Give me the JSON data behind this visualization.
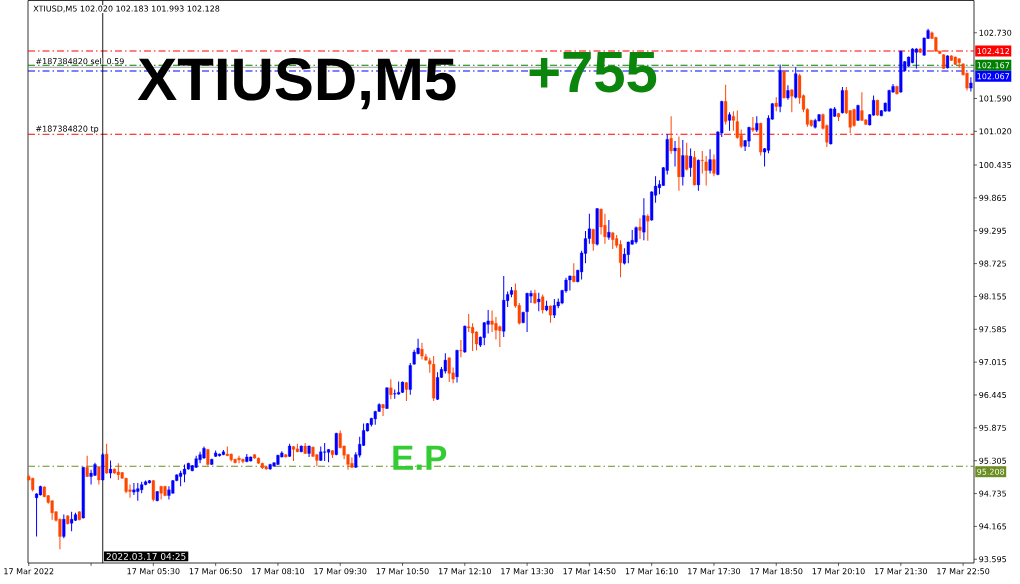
{
  "chart_data": {
    "type": "candlestick",
    "title": "XTIUSD,M5 102.020 102.183 101.993 102.128",
    "x": [
      "2022-03-17T02:50",
      "2022-03-17T02:55",
      "2022-03-17T03:00",
      "2022-03-17T03:05",
      "2022-03-17T03:10",
      "2022-03-17T03:15",
      "2022-03-17T03:20",
      "2022-03-17T03:25",
      "2022-03-17T03:30",
      "2022-03-17T03:35",
      "2022-03-17T03:40",
      "2022-03-17T03:45",
      "2022-03-17T03:50",
      "2022-03-17T03:55",
      "2022-03-17T04:00",
      "2022-03-17T04:05",
      "2022-03-17T04:10",
      "2022-03-17T04:15",
      "2022-03-17T04:20",
      "2022-03-17T04:25",
      "2022-03-17T04:30",
      "2022-03-17T04:35",
      "2022-03-17T04:40",
      "2022-03-17T04:45",
      "2022-03-17T04:50",
      "2022-03-17T04:55",
      "2022-03-17T05:00",
      "2022-03-17T05:05",
      "2022-03-17T05:10",
      "2022-03-17T05:15",
      "2022-03-17T05:20",
      "2022-03-17T05:25",
      "2022-03-17T05:30",
      "2022-03-17T05:35",
      "2022-03-17T05:40",
      "2022-03-17T05:45",
      "2022-03-17T05:50",
      "2022-03-17T05:55",
      "2022-03-17T06:00",
      "2022-03-17T06:05",
      "2022-03-17T06:10",
      "2022-03-17T06:15",
      "2022-03-17T06:20",
      "2022-03-17T06:25",
      "2022-03-17T06:30",
      "2022-03-17T06:35",
      "2022-03-17T06:40",
      "2022-03-17T06:45",
      "2022-03-17T06:50",
      "2022-03-17T06:55",
      "2022-03-17T07:00",
      "2022-03-17T07:05",
      "2022-03-17T07:10",
      "2022-03-17T07:15",
      "2022-03-17T07:20",
      "2022-03-17T07:25",
      "2022-03-17T07:30",
      "2022-03-17T07:35",
      "2022-03-17T07:40",
      "2022-03-17T07:45",
      "2022-03-17T07:50",
      "2022-03-17T07:55",
      "2022-03-17T08:00",
      "2022-03-17T08:05",
      "2022-03-17T08:10",
      "2022-03-17T08:15",
      "2022-03-17T08:20",
      "2022-03-17T08:25",
      "2022-03-17T08:30",
      "2022-03-17T08:35",
      "2022-03-17T08:40",
      "2022-03-17T08:45",
      "2022-03-17T08:50",
      "2022-03-17T08:55",
      "2022-03-17T09:00",
      "2022-03-17T09:05",
      "2022-03-17T09:10",
      "2022-03-17T09:15",
      "2022-03-17T09:20",
      "2022-03-17T09:25",
      "2022-03-17T09:30",
      "2022-03-17T09:35",
      "2022-03-17T09:40",
      "2022-03-17T09:45",
      "2022-03-17T09:50",
      "2022-03-17T09:55",
      "2022-03-17T10:00",
      "2022-03-17T10:05",
      "2022-03-17T10:10",
      "2022-03-17T10:15",
      "2022-03-17T10:20",
      "2022-03-17T10:25",
      "2022-03-17T10:30",
      "2022-03-17T10:35",
      "2022-03-17T10:40",
      "2022-03-17T10:45",
      "2022-03-17T10:50",
      "2022-03-17T10:55",
      "2022-03-17T11:00",
      "2022-03-17T11:05",
      "2022-03-17T11:10",
      "2022-03-17T11:15",
      "2022-03-17T11:20",
      "2022-03-17T11:25",
      "2022-03-17T11:30",
      "2022-03-17T11:35",
      "2022-03-17T11:40",
      "2022-03-17T11:45",
      "2022-03-17T11:50",
      "2022-03-17T11:55",
      "2022-03-17T12:00",
      "2022-03-17T12:05",
      "2022-03-17T12:10",
      "2022-03-17T12:15",
      "2022-03-17T12:20",
      "2022-03-17T12:25",
      "2022-03-17T12:30",
      "2022-03-17T12:35",
      "2022-03-17T12:40",
      "2022-03-17T12:45",
      "2022-03-17T12:50",
      "2022-03-17T12:55",
      "2022-03-17T13:00",
      "2022-03-17T13:05",
      "2022-03-17T13:10",
      "2022-03-17T13:15",
      "2022-03-17T13:20",
      "2022-03-17T13:25",
      "2022-03-17T13:30",
      "2022-03-17T13:35",
      "2022-03-17T13:40",
      "2022-03-17T13:45",
      "2022-03-17T13:50",
      "2022-03-17T13:55",
      "2022-03-17T14:00",
      "2022-03-17T14:05",
      "2022-03-17T14:10",
      "2022-03-17T14:15",
      "2022-03-17T14:20",
      "2022-03-17T14:25",
      "2022-03-17T14:30",
      "2022-03-17T14:35",
      "2022-03-17T14:40",
      "2022-03-17T14:45",
      "2022-03-17T14:50",
      "2022-03-17T14:55",
      "2022-03-17T15:00",
      "2022-03-17T15:05",
      "2022-03-17T15:10",
      "2022-03-17T15:15",
      "2022-03-17T15:20",
      "2022-03-17T15:25",
      "2022-03-17T15:30",
      "2022-03-17T15:35",
      "2022-03-17T15:40",
      "2022-03-17T15:45",
      "2022-03-17T15:50",
      "2022-03-17T15:55",
      "2022-03-17T16:00",
      "2022-03-17T16:05",
      "2022-03-17T16:10",
      "2022-03-17T16:15",
      "2022-03-17T16:20",
      "2022-03-17T16:25",
      "2022-03-17T16:30",
      "2022-03-17T16:35",
      "2022-03-17T16:40",
      "2022-03-17T16:45",
      "2022-03-17T16:50",
      "2022-03-17T16:55",
      "2022-03-17T17:00",
      "2022-03-17T17:05",
      "2022-03-17T17:10",
      "2022-03-17T17:15",
      "2022-03-17T17:20",
      "2022-03-17T17:25",
      "2022-03-17T17:30",
      "2022-03-17T17:35",
      "2022-03-17T17:40",
      "2022-03-17T17:45",
      "2022-03-17T17:50",
      "2022-03-17T17:55",
      "2022-03-17T18:00",
      "2022-03-17T18:05",
      "2022-03-17T18:10",
      "2022-03-17T18:15",
      "2022-03-17T18:20",
      "2022-03-17T18:25",
      "2022-03-17T18:30",
      "2022-03-17T18:35",
      "2022-03-17T18:40",
      "2022-03-17T18:45",
      "2022-03-17T18:50",
      "2022-03-17T18:55",
      "2022-03-17T19:00",
      "2022-03-17T19:05",
      "2022-03-17T19:10",
      "2022-03-17T19:15",
      "2022-03-17T19:20",
      "2022-03-17T19:25",
      "2022-03-17T19:30",
      "2022-03-17T19:35",
      "2022-03-17T19:40",
      "2022-03-17T19:45",
      "2022-03-17T19:50",
      "2022-03-17T19:55",
      "2022-03-17T20:00",
      "2022-03-17T20:05",
      "2022-03-17T20:10",
      "2022-03-17T20:15",
      "2022-03-17T20:20",
      "2022-03-17T20:25",
      "2022-03-17T20:30",
      "2022-03-17T20:35",
      "2022-03-17T20:40",
      "2022-03-17T20:45",
      "2022-03-17T20:50",
      "2022-03-17T20:55",
      "2022-03-17T21:00",
      "2022-03-17T21:05",
      "2022-03-17T21:10",
      "2022-03-17T21:15",
      "2022-03-17T21:20",
      "2022-03-17T21:25",
      "2022-03-17T21:30",
      "2022-03-17T21:35",
      "2022-03-17T21:40",
      "2022-03-17T21:45",
      "2022-03-17T21:50",
      "2022-03-17T21:55",
      "2022-03-17T22:00",
      "2022-03-17T22:05",
      "2022-03-17T22:10",
      "2022-03-17T22:15",
      "2022-03-17T22:20",
      "2022-03-17T22:25",
      "2022-03-17T22:30",
      "2022-03-17T22:35",
      "2022-03-17T22:40",
      "2022-03-17T22:45",
      "2022-03-17T22:50",
      "2022-03-17T22:55",
      "2022-03-17T23:00"
    ],
    "ohlc": [
      [
        95.03,
        95.06,
        94.96,
        94.97
      ],
      [
        95.0,
        95.01,
        94.77,
        94.8
      ],
      [
        94.66,
        94.74,
        93.99,
        94.73
      ],
      [
        94.71,
        94.87,
        94.7,
        94.86
      ],
      [
        94.85,
        94.86,
        94.67,
        94.68
      ],
      [
        94.7,
        94.71,
        94.56,
        94.58
      ],
      [
        94.61,
        94.62,
        94.28,
        94.4
      ],
      [
        94.42,
        94.43,
        94.25,
        94.27
      ],
      [
        94.29,
        94.3,
        93.77,
        93.99
      ],
      [
        93.99,
        94.37,
        93.96,
        94.29
      ],
      [
        94.35,
        94.36,
        94.2,
        94.21
      ],
      [
        94.22,
        94.42,
        94.08,
        94.29
      ],
      [
        94.27,
        94.4,
        94.26,
        94.37
      ],
      [
        94.42,
        94.43,
        94.27,
        94.28
      ],
      [
        94.31,
        95.2,
        94.3,
        95.19
      ],
      [
        95.19,
        95.39,
        95.02,
        95.03
      ],
      [
        95.03,
        95.15,
        94.89,
        95.09
      ],
      [
        95.05,
        95.27,
        95.04,
        95.24
      ],
      [
        95.2,
        95.21,
        94.89,
        94.97
      ],
      [
        94.97,
        95.44,
        94.96,
        95.41
      ],
      [
        95.42,
        95.6,
        95.08,
        95.09
      ],
      [
        95.09,
        95.31,
        95.0,
        95.16
      ],
      [
        95.16,
        95.17,
        95.08,
        95.09
      ],
      [
        95.11,
        95.26,
        94.97,
        95.06
      ],
      [
        95.1,
        95.11,
        94.99,
        95.0
      ],
      [
        95.0,
        95.01,
        94.74,
        94.77
      ],
      [
        94.8,
        94.89,
        94.66,
        94.77
      ],
      [
        94.76,
        94.92,
        94.71,
        94.8
      ],
      [
        94.77,
        94.92,
        94.61,
        94.82
      ],
      [
        94.8,
        94.94,
        94.74,
        94.89
      ],
      [
        94.89,
        94.96,
        94.88,
        94.94
      ],
      [
        94.92,
        94.97,
        94.91,
        94.96
      ],
      [
        94.96,
        94.97,
        94.6,
        94.63
      ],
      [
        94.61,
        94.78,
        94.6,
        94.77
      ],
      [
        94.86,
        94.87,
        94.63,
        94.74
      ],
      [
        94.86,
        94.87,
        94.69,
        94.7
      ],
      [
        94.7,
        94.86,
        94.63,
        94.8
      ],
      [
        94.74,
        94.97,
        94.73,
        94.96
      ],
      [
        94.96,
        95.07,
        94.95,
        95.06
      ],
      [
        95.03,
        95.13,
        94.86,
        95.09
      ],
      [
        95.07,
        95.24,
        94.93,
        95.16
      ],
      [
        95.16,
        95.27,
        95.15,
        95.26
      ],
      [
        95.13,
        95.23,
        95.12,
        95.22
      ],
      [
        95.19,
        95.39,
        95.18,
        95.34
      ],
      [
        95.32,
        95.46,
        95.26,
        95.41
      ],
      [
        95.35,
        95.55,
        95.34,
        95.52
      ],
      [
        95.5,
        95.51,
        95.22,
        95.24
      ],
      [
        95.24,
        95.34,
        95.23,
        95.33
      ],
      [
        95.38,
        95.48,
        95.37,
        95.44
      ],
      [
        95.39,
        95.43,
        95.38,
        95.42
      ],
      [
        95.41,
        95.49,
        95.4,
        95.46
      ],
      [
        95.42,
        95.55,
        95.39,
        95.39
      ],
      [
        95.42,
        95.43,
        95.29,
        95.32
      ],
      [
        95.33,
        95.34,
        95.26,
        95.27
      ],
      [
        95.35,
        95.39,
        95.26,
        95.32
      ],
      [
        95.33,
        95.34,
        95.26,
        95.29
      ],
      [
        95.29,
        95.42,
        95.28,
        95.37
      ],
      [
        95.3,
        95.38,
        95.29,
        95.37
      ],
      [
        95.41,
        95.42,
        95.34,
        95.35
      ],
      [
        95.35,
        95.36,
        95.25,
        95.26
      ],
      [
        95.26,
        95.27,
        95.16,
        95.18
      ],
      [
        95.2,
        95.21,
        95.15,
        95.16
      ],
      [
        95.16,
        95.25,
        95.15,
        95.24
      ],
      [
        95.21,
        95.28,
        95.2,
        95.27
      ],
      [
        95.24,
        95.41,
        95.23,
        95.4
      ],
      [
        95.37,
        95.47,
        95.36,
        95.44
      ],
      [
        95.41,
        95.42,
        95.36,
        95.37
      ],
      [
        95.38,
        95.6,
        95.37,
        95.56
      ],
      [
        95.55,
        95.56,
        95.3,
        95.5
      ],
      [
        95.51,
        95.6,
        95.45,
        95.46
      ],
      [
        95.46,
        95.57,
        95.45,
        95.56
      ],
      [
        95.56,
        95.61,
        95.42,
        95.43
      ],
      [
        95.43,
        95.57,
        95.37,
        95.56
      ],
      [
        95.54,
        95.55,
        95.37,
        95.38
      ],
      [
        95.41,
        95.42,
        95.21,
        95.31
      ],
      [
        95.31,
        95.55,
        95.3,
        95.46
      ],
      [
        95.45,
        95.61,
        95.3,
        95.46
      ],
      [
        95.45,
        95.51,
        95.28,
        95.5
      ],
      [
        95.48,
        95.49,
        95.35,
        95.41
      ],
      [
        95.41,
        95.79,
        95.4,
        95.78
      ],
      [
        95.78,
        95.83,
        95.52,
        95.53
      ],
      [
        95.56,
        95.57,
        95.33,
        95.4
      ],
      [
        95.41,
        95.42,
        95.15,
        95.24
      ],
      [
        95.26,
        95.36,
        95.18,
        95.19
      ],
      [
        95.19,
        95.45,
        95.18,
        95.41
      ],
      [
        95.4,
        95.72,
        95.36,
        95.59
      ],
      [
        95.57,
        95.95,
        95.56,
        95.83
      ],
      [
        95.82,
        95.96,
        95.81,
        95.95
      ],
      [
        95.93,
        96.05,
        95.9,
        96.04
      ],
      [
        96.03,
        96.17,
        95.93,
        96.16
      ],
      [
        96.16,
        96.3,
        96.15,
        96.28
      ],
      [
        96.28,
        96.29,
        96.08,
        96.22
      ],
      [
        96.21,
        96.58,
        96.2,
        96.57
      ],
      [
        96.57,
        96.72,
        96.37,
        96.45
      ],
      [
        96.46,
        96.54,
        96.38,
        96.47
      ],
      [
        96.46,
        96.68,
        96.45,
        96.49
      ],
      [
        96.49,
        96.68,
        96.48,
        96.67
      ],
      [
        96.66,
        96.67,
        96.34,
        96.54
      ],
      [
        96.54,
        97.0,
        96.45,
        96.96
      ],
      [
        96.98,
        97.23,
        96.97,
        97.19
      ],
      [
        97.16,
        97.42,
        97.15,
        97.26
      ],
      [
        97.24,
        97.35,
        97.06,
        97.12
      ],
      [
        97.11,
        97.16,
        97.04,
        97.05
      ],
      [
        97.04,
        97.09,
        96.83,
        96.98
      ],
      [
        96.98,
        97.12,
        96.34,
        96.39
      ],
      [
        96.37,
        96.84,
        96.36,
        96.75
      ],
      [
        96.75,
        96.93,
        96.74,
        96.89
      ],
      [
        96.86,
        97.17,
        96.82,
        97.05
      ],
      [
        97.09,
        97.1,
        96.67,
        96.82
      ],
      [
        96.83,
        96.92,
        96.65,
        96.72
      ],
      [
        96.76,
        97.23,
        96.66,
        97.22
      ],
      [
        97.22,
        97.4,
        97.1,
        97.21
      ],
      [
        97.19,
        97.65,
        97.18,
        97.64
      ],
      [
        97.63,
        97.85,
        97.54,
        97.61
      ],
      [
        97.62,
        97.69,
        97.21,
        97.52
      ],
      [
        97.54,
        97.55,
        97.22,
        97.33
      ],
      [
        97.31,
        97.46,
        97.28,
        97.45
      ],
      [
        97.44,
        97.71,
        97.31,
        97.7
      ],
      [
        97.67,
        97.92,
        97.51,
        97.73
      ],
      [
        97.73,
        97.91,
        97.54,
        97.67
      ],
      [
        97.69,
        97.8,
        97.41,
        97.57
      ],
      [
        97.63,
        97.65,
        97.28,
        97.56
      ],
      [
        97.55,
        98.51,
        97.45,
        98.09
      ],
      [
        98.08,
        98.24,
        97.97,
        98.19
      ],
      [
        98.19,
        98.32,
        98.14,
        98.26
      ],
      [
        98.26,
        98.38,
        97.96,
        97.99
      ],
      [
        98.0,
        98.04,
        97.67,
        97.69
      ],
      [
        97.7,
        97.89,
        97.69,
        97.88
      ],
      [
        97.89,
        98.22,
        97.54,
        98.21
      ],
      [
        98.16,
        98.26,
        98.04,
        98.21
      ],
      [
        98.21,
        98.27,
        98.03,
        98.04
      ],
      [
        98.06,
        98.22,
        97.9,
        98.11
      ],
      [
        98.15,
        98.19,
        97.86,
        97.92
      ],
      [
        97.92,
        98.08,
        97.9,
        97.99
      ],
      [
        97.99,
        98.0,
        97.7,
        97.83
      ],
      [
        97.83,
        98.11,
        97.78,
        98.0
      ],
      [
        97.99,
        98.12,
        97.95,
        98.06
      ],
      [
        98.04,
        98.27,
        98.02,
        98.26
      ],
      [
        98.25,
        98.48,
        98.22,
        98.44
      ],
      [
        98.44,
        98.52,
        98.26,
        98.51
      ],
      [
        98.51,
        98.73,
        98.4,
        98.41
      ],
      [
        98.41,
        98.62,
        98.4,
        98.61
      ],
      [
        98.58,
        98.95,
        98.45,
        98.91
      ],
      [
        98.9,
        99.29,
        98.73,
        99.16
      ],
      [
        99.16,
        99.59,
        99.07,
        99.33
      ],
      [
        99.32,
        99.33,
        98.95,
        99.07
      ],
      [
        99.06,
        99.69,
        99.04,
        99.68
      ],
      [
        99.67,
        99.68,
        99.23,
        99.36
      ],
      [
        99.39,
        99.59,
        99.07,
        99.19
      ],
      [
        99.18,
        99.48,
        99.14,
        99.27
      ],
      [
        99.26,
        99.27,
        98.98,
        99.14
      ],
      [
        99.16,
        99.22,
        99.0,
        99.04
      ],
      [
        99.06,
        99.13,
        98.49,
        98.74
      ],
      [
        98.73,
        98.99,
        98.71,
        98.89
      ],
      [
        98.88,
        99.11,
        98.73,
        99.1
      ],
      [
        99.06,
        99.31,
        99.05,
        99.13
      ],
      [
        99.1,
        99.37,
        99.07,
        99.35
      ],
      [
        99.36,
        99.51,
        99.15,
        99.3
      ],
      [
        99.27,
        99.86,
        99.13,
        99.56
      ],
      [
        99.55,
        99.58,
        99.12,
        99.46
      ],
      [
        99.48,
        99.98,
        99.47,
        99.97
      ],
      [
        99.91,
        100.24,
        99.78,
        100.07
      ],
      [
        100.04,
        100.17,
        99.93,
        100.1
      ],
      [
        100.08,
        100.4,
        100.07,
        100.39
      ],
      [
        100.34,
        100.97,
        100.27,
        100.88
      ],
      [
        100.9,
        101.28,
        100.63,
        100.68
      ],
      [
        100.68,
        100.85,
        100.41,
        100.73
      ],
      [
        100.73,
        100.93,
        99.99,
        100.23
      ],
      [
        100.23,
        100.87,
        100.08,
        100.6
      ],
      [
        100.6,
        100.82,
        100.34,
        100.36
      ],
      [
        100.39,
        100.72,
        100.23,
        100.59
      ],
      [
        100.57,
        100.68,
        100.08,
        100.09
      ],
      [
        100.09,
        100.53,
        99.99,
        100.52
      ],
      [
        100.52,
        100.68,
        100.29,
        100.51
      ],
      [
        100.49,
        100.59,
        100.08,
        100.34
      ],
      [
        100.34,
        100.71,
        100.29,
        100.53
      ],
      [
        100.53,
        100.62,
        100.24,
        100.29
      ],
      [
        100.27,
        101.02,
        100.26,
        101.01
      ],
      [
        100.99,
        101.55,
        100.92,
        101.54
      ],
      [
        101.54,
        101.83,
        101.14,
        101.19
      ],
      [
        101.21,
        101.35,
        101.03,
        101.31
      ],
      [
        101.28,
        101.37,
        101.03,
        101.21
      ],
      [
        101.19,
        101.38,
        100.89,
        100.91
      ],
      [
        100.95,
        101.05,
        100.73,
        100.76
      ],
      [
        100.76,
        100.87,
        100.68,
        100.86
      ],
      [
        100.85,
        101.1,
        100.75,
        101.09
      ],
      [
        101.08,
        101.27,
        101.01,
        101.04
      ],
      [
        101.04,
        101.28,
        101.01,
        101.16
      ],
      [
        101.16,
        101.17,
        100.6,
        100.66
      ],
      [
        100.66,
        100.73,
        100.41,
        100.72
      ],
      [
        100.69,
        101.3,
        100.64,
        101.25
      ],
      [
        101.23,
        101.51,
        101.22,
        101.5
      ],
      [
        101.51,
        101.61,
        101.37,
        101.45
      ],
      [
        101.45,
        102.18,
        101.35,
        102.08
      ],
      [
        102.06,
        102.07,
        101.59,
        101.6
      ],
      [
        101.6,
        101.82,
        101.57,
        101.73
      ],
      [
        101.74,
        101.75,
        101.35,
        101.63
      ],
      [
        101.61,
        102.13,
        101.59,
        102.02
      ],
      [
        101.99,
        102.02,
        101.5,
        101.6
      ],
      [
        101.64,
        101.66,
        101.35,
        101.4
      ],
      [
        101.4,
        101.42,
        101.1,
        101.14
      ],
      [
        101.21,
        101.22,
        101.1,
        101.12
      ],
      [
        101.09,
        101.24,
        101.07,
        101.21
      ],
      [
        101.2,
        101.32,
        101.19,
        101.31
      ],
      [
        101.31,
        101.33,
        101.05,
        101.07
      ],
      [
        101.12,
        101.14,
        100.75,
        100.83
      ],
      [
        100.8,
        101.42,
        100.79,
        101.41
      ],
      [
        101.28,
        101.44,
        101.27,
        101.41
      ],
      [
        101.33,
        101.34,
        101.2,
        101.27
      ],
      [
        101.34,
        101.79,
        101.33,
        101.73
      ],
      [
        101.73,
        101.79,
        101.32,
        101.34
      ],
      [
        101.38,
        101.39,
        100.99,
        101.09
      ],
      [
        101.4,
        101.41,
        101.1,
        101.12
      ],
      [
        101.21,
        101.48,
        101.2,
        101.47
      ],
      [
        101.38,
        101.7,
        101.2,
        101.21
      ],
      [
        101.22,
        101.23,
        101.13,
        101.14
      ],
      [
        101.13,
        101.32,
        101.12,
        101.31
      ],
      [
        101.3,
        101.64,
        101.29,
        101.56
      ],
      [
        101.56,
        101.57,
        101.29,
        101.3
      ],
      [
        101.29,
        101.39,
        101.28,
        101.38
      ],
      [
        101.37,
        101.52,
        101.36,
        101.51
      ],
      [
        101.37,
        101.74,
        101.36,
        101.73
      ],
      [
        101.7,
        101.84,
        101.69,
        101.8
      ],
      [
        101.8,
        101.81,
        101.66,
        101.67
      ],
      [
        101.7,
        102.42,
        101.69,
        102.41
      ],
      [
        102.07,
        102.24,
        102.06,
        102.23
      ],
      [
        102.15,
        102.32,
        102.14,
        102.31
      ],
      [
        102.21,
        102.46,
        102.2,
        102.45
      ],
      [
        102.39,
        102.46,
        102.11,
        102.45
      ],
      [
        102.45,
        102.46,
        102.38,
        102.39
      ],
      [
        102.34,
        102.65,
        102.33,
        102.64
      ],
      [
        102.63,
        102.8,
        102.62,
        102.77
      ],
      [
        102.73,
        102.75,
        102.62,
        102.63
      ],
      [
        102.65,
        102.66,
        102.4,
        102.41
      ],
      [
        102.41,
        102.42,
        102.36,
        102.37
      ],
      [
        102.35,
        102.36,
        102.1,
        102.11
      ],
      [
        102.12,
        102.34,
        102.11,
        102.33
      ],
      [
        102.33,
        102.34,
        102.24,
        102.25
      ],
      [
        102.31,
        102.32,
        102.17,
        102.18
      ],
      [
        102.28,
        102.29,
        102.12,
        102.21
      ],
      [
        102.19,
        102.2,
        101.99,
        102.0
      ],
      [
        102.03,
        102.04,
        101.73,
        101.77
      ],
      [
        101.77,
        101.96,
        101.71,
        101.86
      ]
    ],
    "colors": [
      "#ff4500",
      "#ff4500",
      "#0000ff",
      "#0000ff",
      "#ff4500",
      "#ff4500",
      "#ff4500",
      "#ff4500",
      "#ff4500",
      "#0000ff",
      "#ff4500",
      "#0000ff",
      "#0000ff",
      "#ff4500",
      "#0000ff",
      "#ff4500",
      "#0000ff",
      "#0000ff",
      "#ff4500",
      "#0000ff",
      "#ff4500",
      "#0000ff",
      "#ff4500",
      "#ff4500",
      "#ff4500",
      "#ff4500",
      "#ff4500",
      "#0000ff",
      "#0000ff",
      "#0000ff",
      "#0000ff",
      "#0000ff",
      "#ff4500",
      "#0000ff",
      "#ff4500",
      "#ff4500",
      "#0000ff",
      "#0000ff",
      "#0000ff",
      "#0000ff",
      "#0000ff",
      "#0000ff",
      "#0000ff",
      "#0000ff",
      "#0000ff",
      "#0000ff",
      "#ff4500",
      "#0000ff",
      "#0000ff",
      "#0000ff",
      "#0000ff",
      "#ff4500",
      "#ff4500",
      "#ff4500",
      "#ff4500",
      "#ff4500",
      "#0000ff",
      "#0000ff",
      "#ff4500",
      "#ff4500",
      "#ff4500",
      "#ff4500",
      "#0000ff",
      "#0000ff",
      "#0000ff",
      "#0000ff",
      "#ff4500",
      "#0000ff",
      "#ff4500",
      "#ff4500",
      "#0000ff",
      "#ff4500",
      "#0000ff",
      "#ff4500",
      "#ff4500",
      "#0000ff",
      "#0000ff",
      "#0000ff",
      "#ff4500",
      "#0000ff",
      "#ff4500",
      "#ff4500",
      "#ff4500",
      "#ff4500",
      "#0000ff",
      "#0000ff",
      "#0000ff",
      "#0000ff",
      "#0000ff",
      "#0000ff",
      "#0000ff",
      "#ff4500",
      "#0000ff",
      "#ff4500",
      "#0000ff",
      "#0000ff",
      "#0000ff",
      "#ff4500",
      "#0000ff",
      "#0000ff",
      "#0000ff",
      "#ff4500",
      "#ff4500",
      "#ff4500",
      "#ff4500",
      "#0000ff",
      "#0000ff",
      "#0000ff",
      "#ff4500",
      "#ff4500",
      "#0000ff",
      "#ff4500",
      "#0000ff",
      "#ff4500",
      "#ff4500",
      "#ff4500",
      "#0000ff",
      "#0000ff",
      "#0000ff",
      "#ff4500",
      "#ff4500",
      "#ff4500",
      "#0000ff",
      "#0000ff",
      "#0000ff",
      "#ff4500",
      "#ff4500",
      "#0000ff",
      "#0000ff",
      "#0000ff",
      "#ff4500",
      "#0000ff",
      "#ff4500",
      "#0000ff",
      "#ff4500",
      "#0000ff",
      "#0000ff",
      "#0000ff",
      "#0000ff",
      "#0000ff",
      "#ff4500",
      "#0000ff",
      "#0000ff",
      "#0000ff",
      "#0000ff",
      "#ff4500",
      "#0000ff",
      "#ff4500",
      "#ff4500",
      "#0000ff",
      "#ff4500",
      "#ff4500",
      "#ff4500",
      "#0000ff",
      "#0000ff",
      "#0000ff",
      "#0000ff",
      "#ff4500",
      "#0000ff",
      "#ff4500",
      "#0000ff",
      "#0000ff",
      "#0000ff",
      "#0000ff",
      "#0000ff",
      "#ff4500",
      "#0000ff",
      "#ff4500",
      "#0000ff",
      "#ff4500",
      "#0000ff",
      "#ff4500",
      "#0000ff",
      "#ff4500",
      "#ff4500",
      "#0000ff",
      "#ff4500",
      "#0000ff",
      "#0000ff",
      "#ff4500",
      "#0000ff",
      "#ff4500",
      "#ff4500",
      "#ff4500",
      "#0000ff",
      "#0000ff",
      "#ff4500",
      "#0000ff",
      "#ff4500",
      "#0000ff",
      "#0000ff",
      "#0000ff",
      "#ff4500",
      "#0000ff",
      "#ff4500",
      "#0000ff",
      "#ff4500",
      "#0000ff",
      "#ff4500",
      "#ff4500",
      "#ff4500",
      "#ff4500",
      "#0000ff",
      "#0000ff",
      "#ff4500",
      "#ff4500",
      "#0000ff",
      "#0000ff",
      "#ff4500",
      "#0000ff",
      "#ff4500",
      "#ff4500",
      "#ff4500",
      "#0000ff",
      "#ff4500",
      "#ff4500",
      "#0000ff",
      "#0000ff",
      "#ff4500",
      "#0000ff",
      "#0000ff",
      "#0000ff",
      "#0000ff",
      "#ff4500",
      "#0000ff",
      "#0000ff",
      "#0000ff",
      "#0000ff",
      "#0000ff",
      "#ff4500",
      "#0000ff",
      "#0000ff",
      "#ff4500",
      "#ff4500",
      "#ff4500",
      "#ff4500",
      "#0000ff",
      "#ff4500",
      "#ff4500",
      "#ff4500",
      "#ff4500",
      "#ff4500",
      "#0000ff"
    ],
    "xlim": [
      "2022-03-17T02:49",
      "2022-03-17T23:04"
    ],
    "xticks": [
      {
        "value": "2022-03-17T02:50",
        "label": "17 Mar 2022"
      },
      {
        "value": "2022-03-17T04:10",
        "label": null
      },
      {
        "value": "2022-03-17T05:30",
        "label": "17 Mar 05:30"
      },
      {
        "value": "2022-03-17T06:50",
        "label": "17 Mar 06:50"
      },
      {
        "value": "2022-03-17T08:10",
        "label": "17 Mar 08:10"
      },
      {
        "value": "2022-03-17T09:30",
        "label": "17 Mar 09:30"
      },
      {
        "value": "2022-03-17T10:50",
        "label": "17 Mar 10:50"
      },
      {
        "value": "2022-03-17T12:10",
        "label": "17 Mar 12:10"
      },
      {
        "value": "2022-03-17T13:30",
        "label": "17 Mar 13:30"
      },
      {
        "value": "2022-03-17T14:50",
        "label": "17 Mar 14:50"
      },
      {
        "value": "2022-03-17T16:10",
        "label": "17 Mar 16:10"
      },
      {
        "value": "2022-03-17T17:30",
        "label": "17 Mar 17:30"
      },
      {
        "value": "2022-03-17T18:50",
        "label": "17 Mar 18:50"
      },
      {
        "value": "2022-03-17T20:10",
        "label": "17 Mar 20:10"
      },
      {
        "value": "2022-03-17T21:30",
        "label": "17 Mar 21:30"
      },
      {
        "value": "2022-03-17T22:50",
        "label": "17 Mar 22:50"
      }
    ],
    "ylim": [
      93.53,
      103.29
    ],
    "yticks": [
      93.595,
      94.165,
      94.735,
      95.305,
      95.875,
      96.445,
      97.015,
      97.585,
      98.155,
      98.725,
      99.295,
      99.865,
      100.435,
      {
        "value": 101.02,
        "label": "101.020"
      },
      {
        "value": 101.59,
        "label": "101.590"
      },
      {
        "value": 102.73,
        "label": "102.730"
      }
    ],
    "ref_lines": [
      {
        "axis": "y",
        "value": 102.412,
        "label": "102.412",
        "color": "#ff0000",
        "line_style": "dashdot"
      },
      {
        "axis": "y",
        "value": 102.167,
        "label": "102.167",
        "color": "#008000",
        "line_style": "dashdot"
      },
      {
        "axis": "y",
        "value": 102.13,
        "color": "#a0a0a0",
        "line_style": "solid"
      },
      {
        "axis": "y",
        "value": 102.067,
        "label": "102.067",
        "color": "#0000ff",
        "line_style": "dashdot"
      },
      {
        "axis": "y",
        "value": 100.97,
        "color": "#ff0000",
        "line_style": "dashdot"
      },
      {
        "axis": "y",
        "value": 95.208,
        "label": "95.208",
        "color": "#6b8e23",
        "line_style": "dashdot"
      },
      {
        "axis": "x",
        "value": "2022-03-17T04:25",
        "label": "2022.03.17 04:25",
        "color": "#000000",
        "line_style": "solid"
      }
    ],
    "annotations": [
      "XTIUSD,M5",
      "+755",
      {
        "text": "#187384820 sell 0.59",
        "x": "2022-03-17T02:57",
        "y": 102.167
      },
      {
        "text": "#187384820 tp",
        "x": "2022-03-17T02:57",
        "y": 100.97
      },
      {
        "text": "E.P",
        "x": "2022-03-17T10:35",
        "y": 95.208
      }
    ]
  }
}
